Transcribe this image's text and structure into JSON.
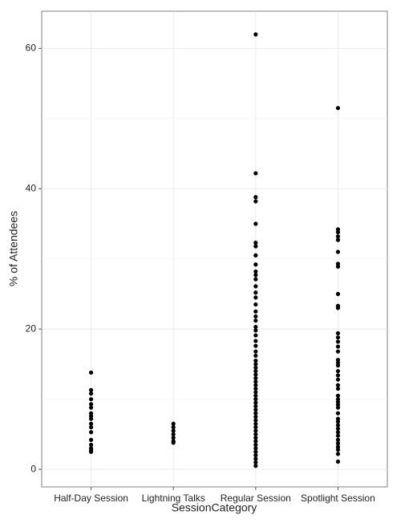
{
  "chart_data": {
    "type": "strip",
    "x_label": "SessionCategory",
    "y_label": "% of Attendees",
    "categories": [
      "Half-Day Session",
      "Lightning Talks",
      "Regular Session",
      "Spotlight Session"
    ],
    "values": [
      [
        13.8,
        11.3,
        10.8,
        10.0,
        9.3,
        8.8,
        8.0,
        7.6,
        7.2,
        6.5,
        6.0,
        5.3,
        4.2,
        3.5,
        3.0,
        2.7,
        2.5
      ],
      [
        6.5,
        6.0,
        5.5,
        5.0,
        4.5,
        4.0,
        3.8
      ],
      [
        62.0,
        42.2,
        38.8,
        38.2,
        35.0,
        32.3,
        31.8,
        30.5,
        29.2,
        28.2,
        27.7,
        27.1,
        26.1,
        25.2,
        24.5,
        23.5,
        22.5,
        21.8,
        21.2,
        20.3,
        19.8,
        19.1,
        18.3,
        17.6,
        16.8,
        16.2,
        15.5,
        15.0,
        14.5,
        14.0,
        13.5,
        13.0,
        12.5,
        12.0,
        11.5,
        11.0,
        10.5,
        10.0,
        9.5,
        9.0,
        8.5,
        8.0,
        7.5,
        7.0,
        6.5,
        6.0,
        5.5,
        5.0,
        4.5,
        4.0,
        3.5,
        3.0,
        2.5,
        2.0,
        1.5,
        1.0,
        0.5
      ],
      [
        51.5,
        34.2,
        33.8,
        33.2,
        32.7,
        31.0,
        29.3,
        28.9,
        25.0,
        23.3,
        23.0,
        19.4,
        18.8,
        18.2,
        17.5,
        16.8,
        15.6,
        15.2,
        14.8,
        14.0,
        13.4,
        12.8,
        12.0,
        11.5,
        10.5,
        10.0,
        9.6,
        9.2,
        8.8,
        8.0,
        7.2,
        6.8,
        6.3,
        5.8,
        5.3,
        4.8,
        4.2,
        3.7,
        3.2,
        2.8,
        2.2,
        1.1
      ]
    ],
    "color": "#000000",
    "ylim": [
      -2.5,
      65.3
    ],
    "yticks": [
      0,
      20,
      40,
      60
    ],
    "yminor": [
      10,
      30,
      50
    ],
    "grid": true
  }
}
